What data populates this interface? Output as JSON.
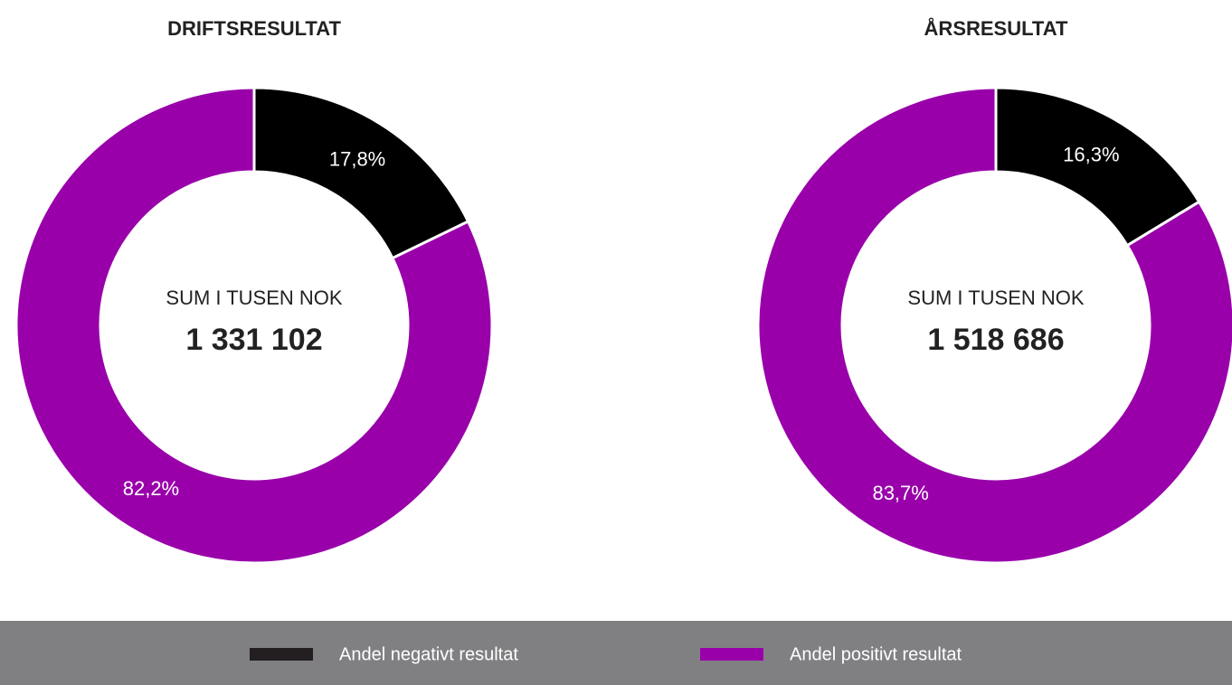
{
  "chart_data": [
    {
      "type": "donut",
      "title": "DRIFTSRESULTAT",
      "categories": [
        "Andel negativt resultat",
        "Andel positivt resultat"
      ],
      "values": [
        17.8,
        82.2
      ],
      "value_labels": [
        "17,8%",
        "82,2%"
      ],
      "colors": [
        "#000000",
        "#9900aa"
      ],
      "center_label": "SUM I TUSEN NOK",
      "center_value": "1 331 102"
    },
    {
      "type": "donut",
      "title": "ÅRSRESULTAT",
      "categories": [
        "Andel negativt resultat",
        "Andel positivt resultat"
      ],
      "values": [
        16.3,
        83.7
      ],
      "value_labels": [
        "16,3%",
        "83,7%"
      ],
      "colors": [
        "#000000",
        "#9900aa"
      ],
      "center_label": "SUM I TUSEN NOK",
      "center_value": "1 518 686"
    }
  ]
}
